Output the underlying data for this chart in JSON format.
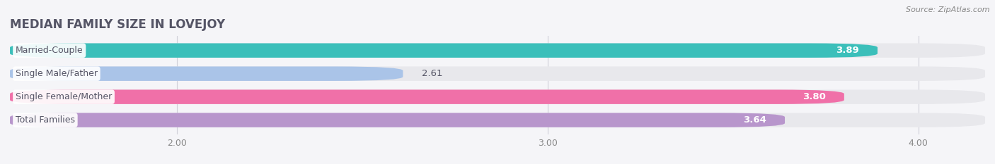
{
  "title": "MEDIAN FAMILY SIZE IN LOVEJOY",
  "source": "Source: ZipAtlas.com",
  "categories": [
    "Married-Couple",
    "Single Male/Father",
    "Single Female/Mother",
    "Total Families"
  ],
  "values": [
    3.89,
    2.61,
    3.8,
    3.64
  ],
  "value_labels": [
    "3.89",
    "2.61",
    "3.80",
    "3.64"
  ],
  "colors": [
    "#3bbfba",
    "#aac4e8",
    "#f070a8",
    "#b896cc"
  ],
  "bar_bg_color": "#e8e8ec",
  "xlim_min": 1.55,
  "xlim_max": 4.18,
  "xticks": [
    2.0,
    3.0,
    4.0
  ],
  "xtick_labels": [
    "2.00",
    "3.00",
    "4.00"
  ],
  "bar_height": 0.62,
  "bar_gap": 0.38,
  "value_fontsize": 9.5,
  "label_fontsize": 9,
  "title_fontsize": 12,
  "source_fontsize": 8,
  "background_color": "#f5f5f8",
  "plot_bg_color": "#f5f5f8",
  "title_color": "#555566",
  "source_color": "#888888",
  "label_color": "#555566",
  "grid_color": "#d0d0d8",
  "value_inside_threshold": 3.5
}
